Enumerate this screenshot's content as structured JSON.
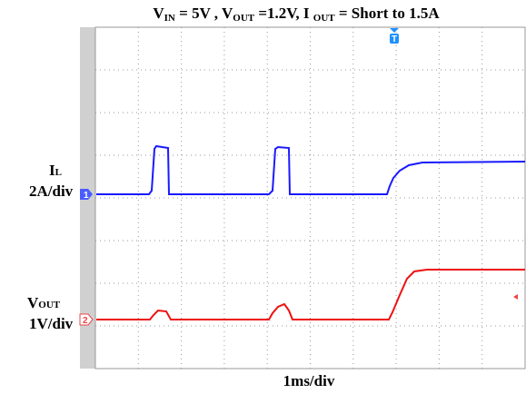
{
  "title": [
    "V",
    "IN",
    " = 5V , V",
    "OUT",
    " =1.2V,  I ",
    "OUT",
    " = Short to 1.5A"
  ],
  "channels": [
    {
      "label": [
        "I",
        "L"
      ],
      "scale": "2A/div",
      "marker": "1"
    },
    {
      "label": [
        "V",
        "OUT"
      ],
      "scale": "1V/div",
      "marker": "2"
    }
  ],
  "trigger": "T",
  "timebase": "1ms/div"
}
